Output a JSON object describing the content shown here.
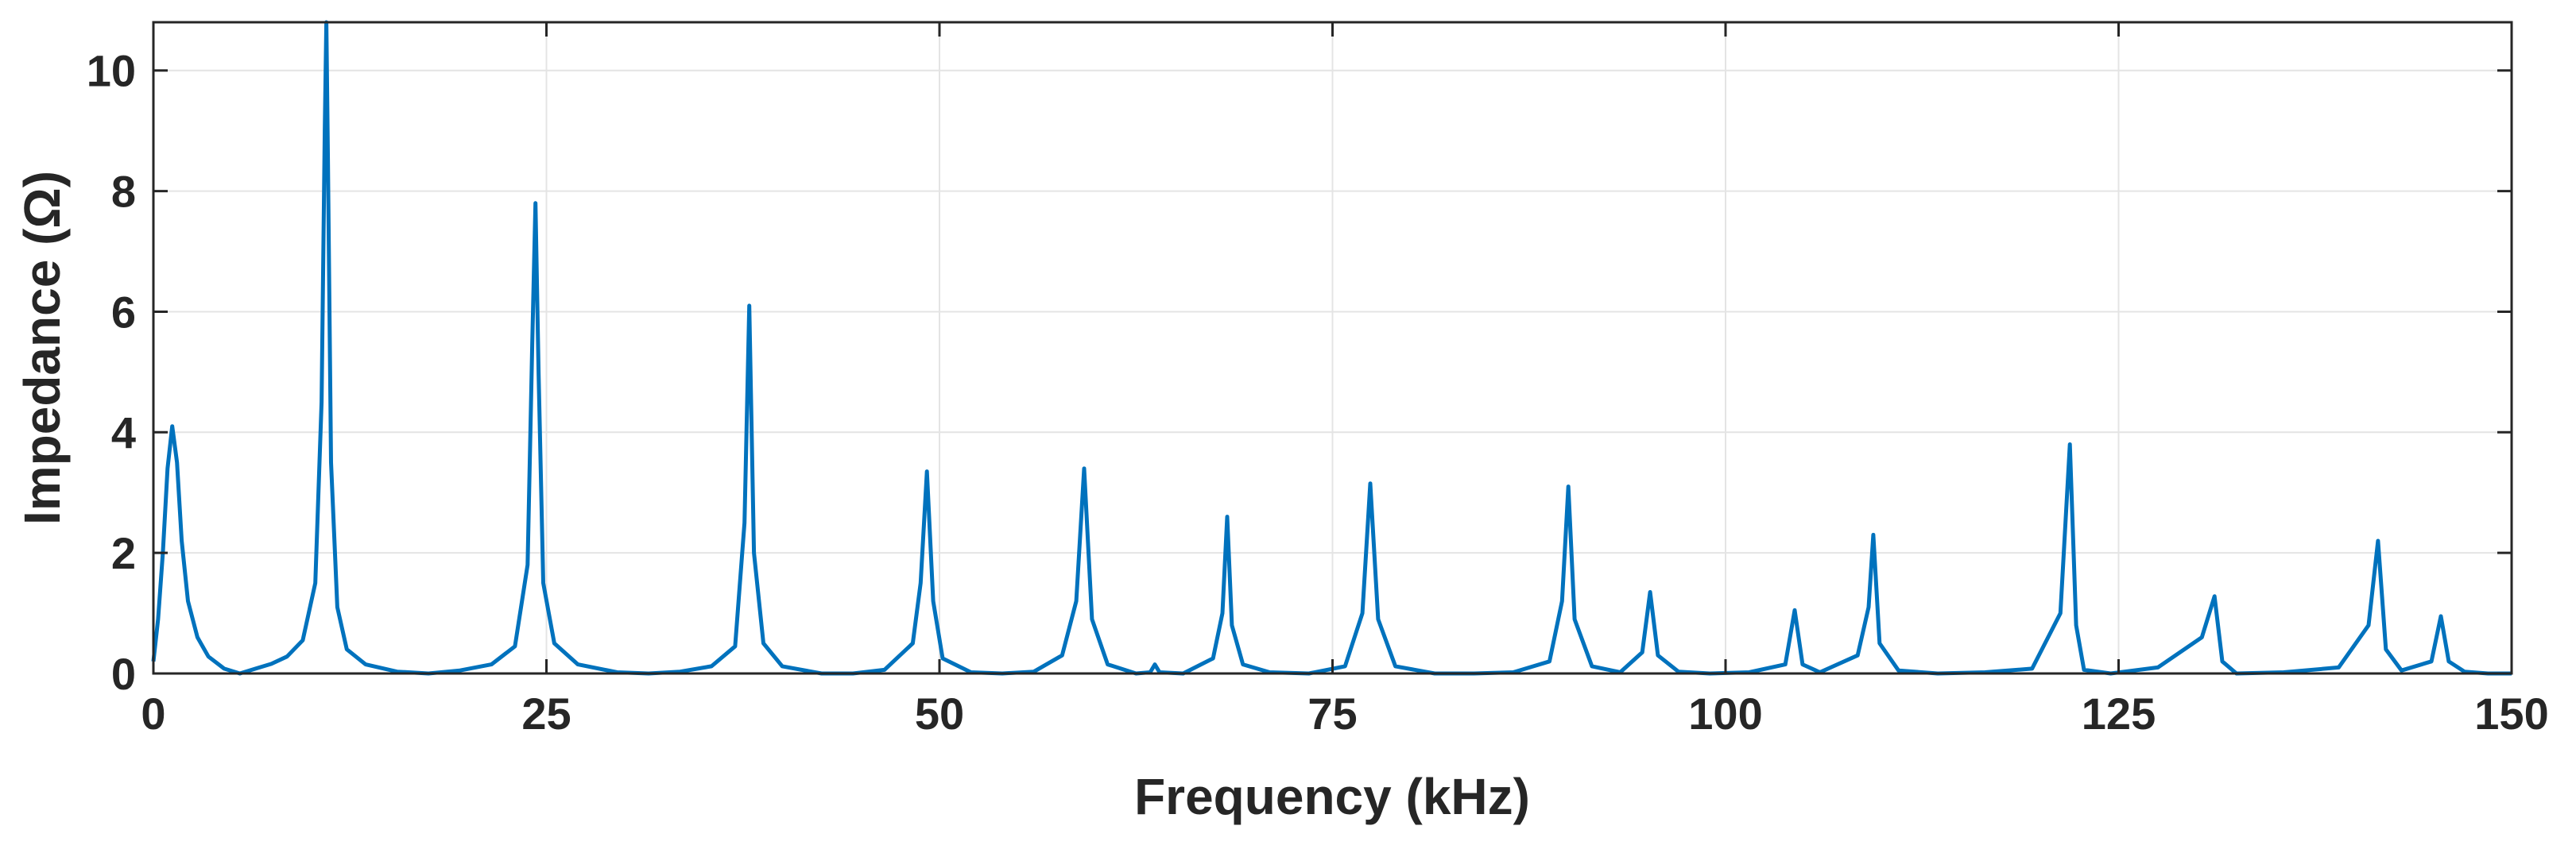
{
  "chart_data": {
    "type": "line",
    "title": "",
    "xlabel": "Frequency (kHz)",
    "ylabel": "Impedance (Ω)",
    "xlim": [
      0,
      150
    ],
    "ylim": [
      0,
      10.8
    ],
    "xticks": [
      0,
      25,
      50,
      75,
      100,
      125,
      150
    ],
    "xtick_labels": [
      "0",
      "25",
      "50",
      "75",
      "100",
      "125",
      "150"
    ],
    "yticks": [
      0,
      2,
      4,
      6,
      8,
      10
    ],
    "ytick_labels": [
      "0",
      "2",
      "4",
      "6",
      "8",
      "10"
    ],
    "grid": true,
    "legend": "none",
    "series": [
      {
        "color": "#0072BD",
        "x": [
          0,
          0.3,
          0.6,
          0.9,
          1.2,
          1.5,
          1.8,
          2.2,
          2.8,
          3.5,
          4.5,
          5.5,
          6.5,
          7.5,
          8.5,
          9.5,
          10.3,
          10.7,
          10.9,
          11.0,
          11.1,
          11.3,
          11.7,
          12.3,
          13.5,
          15.5,
          17.5,
          19.5,
          21.5,
          23.0,
          23.8,
          24.1,
          24.3,
          24.5,
          24.8,
          25.5,
          27.0,
          29.5,
          31.5,
          33.5,
          35.5,
          37.0,
          37.6,
          37.9,
          38.2,
          38.8,
          40.0,
          42.5,
          44.5,
          46.5,
          48.3,
          48.8,
          49.2,
          49.6,
          50.2,
          52.0,
          54.0,
          56.0,
          57.8,
          58.7,
          59.2,
          59.7,
          60.7,
          62.5,
          63.4,
          63.7,
          64.0,
          65.5,
          67.4,
          68.0,
          68.3,
          68.6,
          69.3,
          71.0,
          73.5,
          75.8,
          76.9,
          77.4,
          77.9,
          79.0,
          81.5,
          84.0,
          86.5,
          88.8,
          89.6,
          90.0,
          90.4,
          91.5,
          93.3,
          94.7,
          95.2,
          95.7,
          97.0,
          99.0,
          101.5,
          103.8,
          104.4,
          104.9,
          106.0,
          108.4,
          109.1,
          109.4,
          109.8,
          111.0,
          113.5,
          116.5,
          119.5,
          121.3,
          121.9,
          122.3,
          122.8,
          124.5,
          127.5,
          130.3,
          131.1,
          131.6,
          132.5,
          135.5,
          139.0,
          140.9,
          141.5,
          142.0,
          143.0,
          144.9,
          145.5,
          146.0,
          147.0,
          148.5,
          150.0
        ],
        "y": [
          0.2,
          0.9,
          2.0,
          3.4,
          4.1,
          3.5,
          2.2,
          1.2,
          0.6,
          0.28,
          0.08,
          0.0,
          0.08,
          0.16,
          0.28,
          0.55,
          1.5,
          4.5,
          9.0,
          10.8,
          8.5,
          3.5,
          1.1,
          0.4,
          0.15,
          0.03,
          0.0,
          0.05,
          0.15,
          0.45,
          1.8,
          5.5,
          7.8,
          5.0,
          1.5,
          0.5,
          0.15,
          0.02,
          0.0,
          0.03,
          0.12,
          0.45,
          2.5,
          6.1,
          2.0,
          0.5,
          0.12,
          0.0,
          0.0,
          0.06,
          0.5,
          1.5,
          3.35,
          1.2,
          0.25,
          0.02,
          0.0,
          0.03,
          0.3,
          1.2,
          3.4,
          0.9,
          0.15,
          0.0,
          0.02,
          0.15,
          0.02,
          0.0,
          0.25,
          1.0,
          2.6,
          0.8,
          0.15,
          0.02,
          0.0,
          0.12,
          1.0,
          3.15,
          0.9,
          0.12,
          0.0,
          0.0,
          0.02,
          0.2,
          1.2,
          3.1,
          0.9,
          0.12,
          0.02,
          0.35,
          1.35,
          0.3,
          0.03,
          0.0,
          0.02,
          0.15,
          1.05,
          0.15,
          0.02,
          0.3,
          1.1,
          2.3,
          0.5,
          0.05,
          0.0,
          0.02,
          0.08,
          1.0,
          3.8,
          0.8,
          0.06,
          0.0,
          0.1,
          0.6,
          1.28,
          0.2,
          0.0,
          0.02,
          0.1,
          0.8,
          2.2,
          0.4,
          0.05,
          0.2,
          0.95,
          0.2,
          0.03,
          0.0,
          0.0
        ]
      }
    ]
  }
}
